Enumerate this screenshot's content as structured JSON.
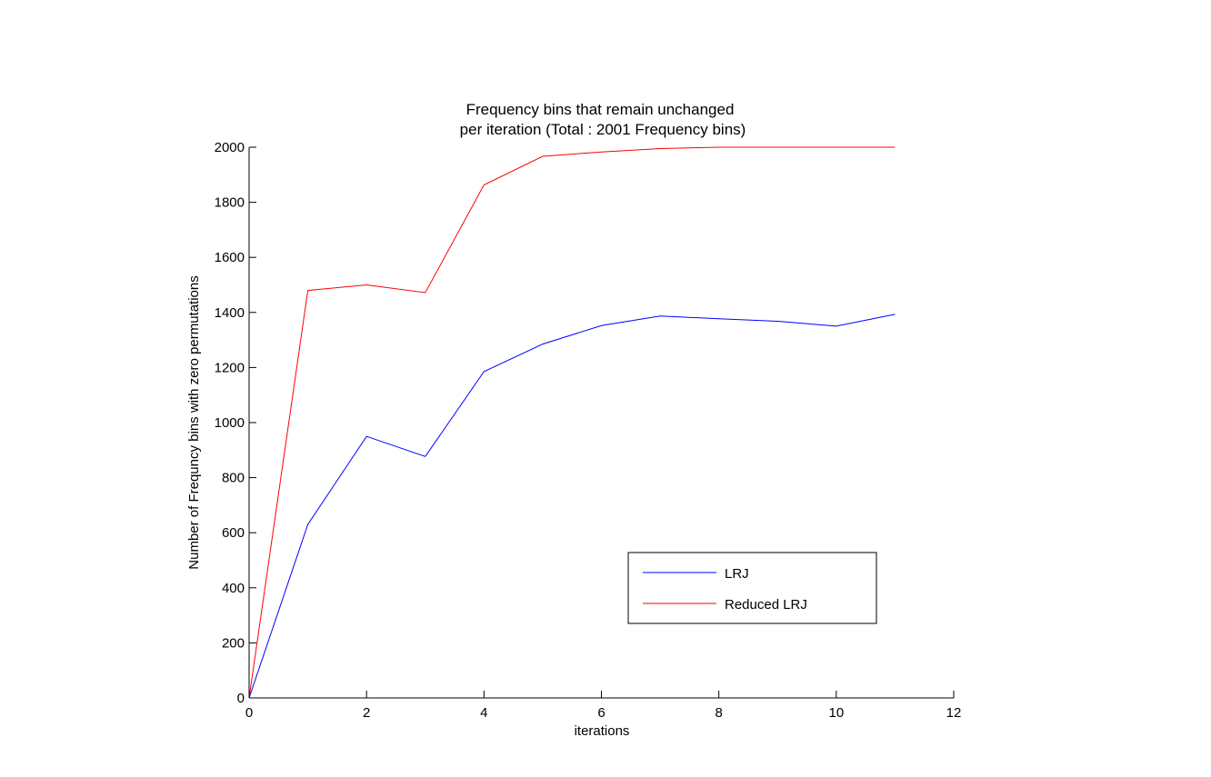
{
  "chart_data": {
    "type": "line",
    "title": [
      "Frequency bins that remain unchanged",
      "per iteration (Total : 2001 Frequency bins)"
    ],
    "xlabel": "iterations",
    "ylabel": "Number of Frequncy bins with zero permutations",
    "xlim": [
      0,
      12
    ],
    "ylim": [
      0,
      2000
    ],
    "xticks": [
      0,
      2,
      4,
      6,
      8,
      10,
      12
    ],
    "yticks": [
      0,
      200,
      400,
      600,
      800,
      1000,
      1200,
      1400,
      1600,
      1800,
      2000
    ],
    "grid": false,
    "legend_position": "bottom-right",
    "series": [
      {
        "name": "LRJ",
        "color": "#0000ff",
        "x": [
          0,
          1,
          2,
          3,
          4,
          5,
          6,
          7,
          8,
          9,
          10,
          11
        ],
        "y": [
          0,
          630,
          950,
          877,
          1185,
          1285,
          1352,
          1387,
          1377,
          1368,
          1350,
          1393
        ]
      },
      {
        "name": "Reduced LRJ",
        "color": "#ff0000",
        "x": [
          0,
          1,
          2,
          3,
          4,
          5,
          6,
          7,
          8,
          9,
          10,
          11
        ],
        "y": [
          0,
          1480,
          1500,
          1472,
          1863,
          1967,
          1983,
          1995,
          2000,
          2000,
          2000,
          2000
        ]
      }
    ]
  }
}
